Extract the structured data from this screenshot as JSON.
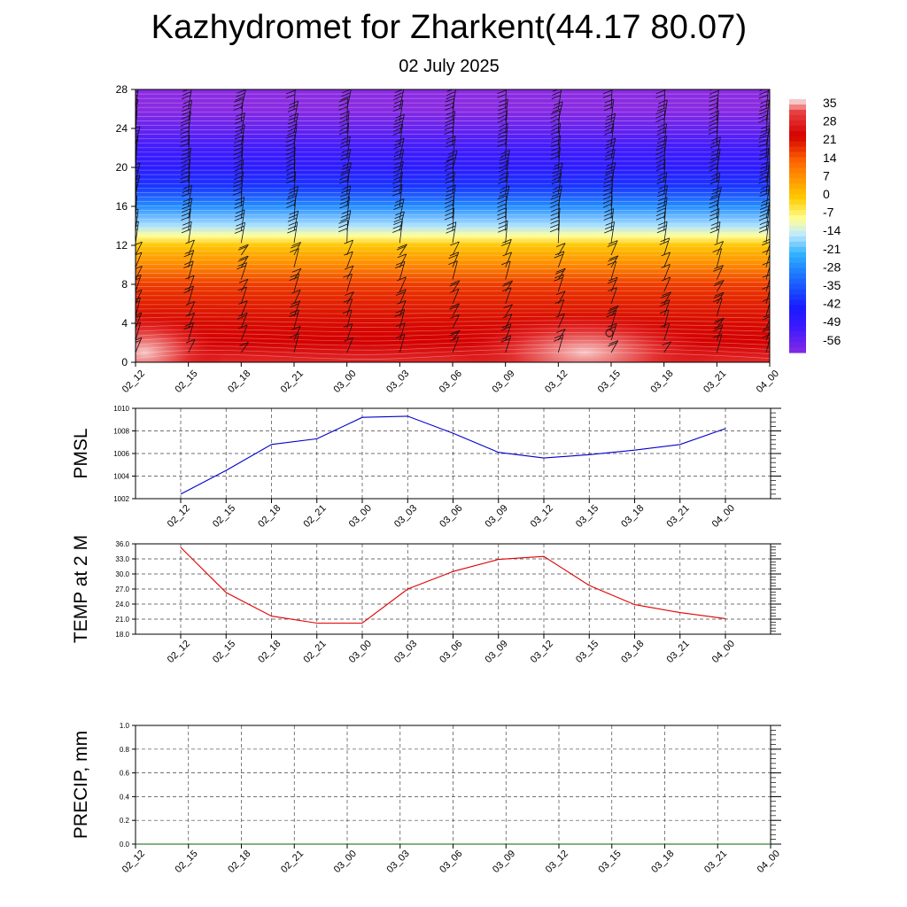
{
  "header": {
    "title": "Kazhydromet for Zharkent(44.17 80.07)",
    "subtitle": "02 July 2025"
  },
  "chart_data": [
    {
      "type": "heatmap",
      "title": "Kazhydromet for Zharkent(44.17 80.07)",
      "subtitle": "02 July 2025",
      "x": [
        "02_12",
        "02_15",
        "02_18",
        "02_21",
        "03_00",
        "03_03",
        "03_06",
        "03_09",
        "03_12",
        "03_15",
        "03_18",
        "03_21",
        "04_00"
      ],
      "y_ticks": [
        0,
        4,
        8,
        12,
        16,
        20,
        24,
        28
      ],
      "ylim": [
        0,
        28
      ],
      "colorbar": {
        "labels": [
          "35",
          "28",
          "21",
          "14",
          "7",
          "0",
          "-7",
          "-14",
          "-21",
          "-28",
          "-35",
          "-42",
          "-49",
          "-56"
        ],
        "stops": [
          {
            "v": 37,
            "color": "#f7c6c6"
          },
          {
            "v": 33,
            "color": "#e84040"
          },
          {
            "v": 24,
            "color": "#d40000"
          },
          {
            "v": 14,
            "color": "#ff6600"
          },
          {
            "v": 7,
            "color": "#ff9900"
          },
          {
            "v": 0,
            "color": "#ffcc00"
          },
          {
            "v": -8,
            "color": "#ffff99"
          },
          {
            "v": -14,
            "color": "#bfe8ff"
          },
          {
            "v": -21,
            "color": "#33b5ff"
          },
          {
            "v": -28,
            "color": "#1f7fff"
          },
          {
            "v": -35,
            "color": "#1a4dff"
          },
          {
            "v": -42,
            "color": "#1a1aff"
          },
          {
            "v": -49,
            "color": "#3a1aff"
          },
          {
            "v": -60,
            "color": "#8a2be2"
          }
        ]
      },
      "profile": [
        {
          "y": 0,
          "t": 30
        },
        {
          "y": 2,
          "t": 24
        },
        {
          "y": 4,
          "t": 23
        },
        {
          "y": 6,
          "t": 21
        },
        {
          "y": 8,
          "t": 18
        },
        {
          "y": 10,
          "t": 9
        },
        {
          "y": 12,
          "t": 1
        },
        {
          "y": 13,
          "t": -8
        },
        {
          "y": 14,
          "t": -15
        },
        {
          "y": 16,
          "t": -26
        },
        {
          "y": 18,
          "t": -38
        },
        {
          "y": 20,
          "t": -46
        },
        {
          "y": 22,
          "t": -50
        },
        {
          "y": 24,
          "t": -55
        },
        {
          "y": 26,
          "t": -60
        },
        {
          "y": 28,
          "t": -62
        }
      ],
      "warm_spots": [
        {
          "x": "02_12",
          "y": 1,
          "t": 37
        },
        {
          "x": "03_12",
          "y": 1,
          "t": 36
        }
      ]
    },
    {
      "type": "line",
      "ylabel": "PMSL",
      "x": [
        "02_12",
        "02_15",
        "02_18",
        "02_21",
        "03_00",
        "03_03",
        "03_06",
        "03_09",
        "03_12",
        "03_15",
        "03_18",
        "03_21",
        "04_00"
      ],
      "ylim": [
        1002,
        1010
      ],
      "yticks": [
        "1002",
        "1004",
        "1006",
        "1008",
        "1010"
      ],
      "series": [
        {
          "color": "#0000cc",
          "values": [
            1002.4,
            1004.5,
            1006.8,
            1007.3,
            1009.2,
            1009.3,
            1007.8,
            1006.1,
            1005.6,
            1005.9,
            1006.3,
            1006.8,
            1008.2
          ]
        }
      ]
    },
    {
      "type": "line",
      "ylabel": "TEMP at 2 M",
      "x": [
        "02_12",
        "02_15",
        "02_18",
        "02_21",
        "03_00",
        "03_03",
        "03_06",
        "03_09",
        "03_12",
        "03_15",
        "03_18",
        "03_21",
        "04_00"
      ],
      "ylim": [
        18,
        36
      ],
      "yticks": [
        "18.0",
        "21.0",
        "24.0",
        "27.0",
        "30.0",
        "33.0",
        "36.0"
      ],
      "series": [
        {
          "color": "#e00000",
          "values": [
            35.3,
            26.3,
            21.6,
            20.2,
            20.2,
            27.0,
            30.5,
            32.9,
            33.5,
            27.7,
            23.9,
            22.3,
            21.1
          ]
        }
      ]
    },
    {
      "type": "line",
      "ylabel": "PRECIP, mm",
      "x": [
        "02_12",
        "02_15",
        "02_18",
        "02_21",
        "03_00",
        "03_03",
        "03_06",
        "03_09",
        "03_12",
        "03_15",
        "03_18",
        "03_21",
        "04_00"
      ],
      "ylim": [
        0,
        1
      ],
      "yticks": [
        "0.0",
        "0.2",
        "0.4",
        "0.6",
        "0.8",
        "1.0"
      ],
      "series": [
        {
          "color": "#006400",
          "values": [
            0,
            0,
            0,
            0,
            0,
            0,
            0,
            0,
            0,
            0,
            0,
            0,
            0
          ]
        }
      ]
    }
  ]
}
